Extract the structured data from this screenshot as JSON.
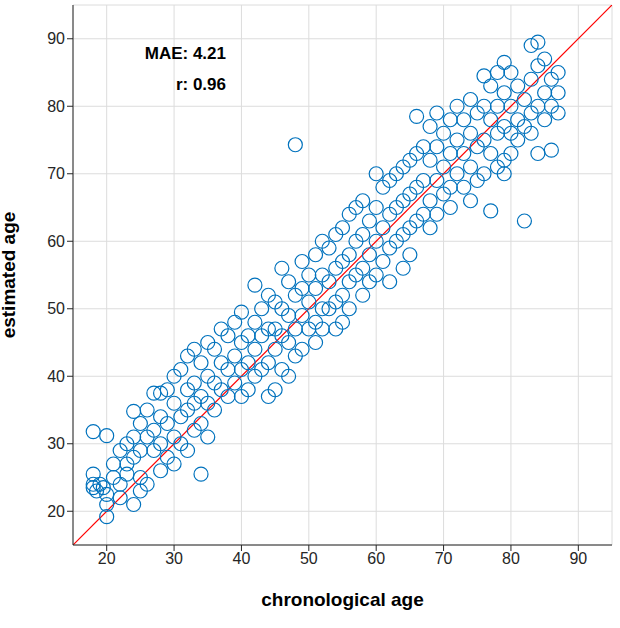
{
  "chart_data": {
    "type": "scatter",
    "x_label": "chronological age",
    "y_label": "estimated age",
    "annotations": [
      "MAE: 4.21",
      "r: 0.96"
    ],
    "xlim": [
      15,
      95
    ],
    "ylim": [
      15,
      95
    ],
    "xticks": [
      20,
      30,
      40,
      50,
      60,
      70,
      80,
      90
    ],
    "yticks": [
      20,
      30,
      40,
      50,
      60,
      70,
      80,
      90
    ],
    "grid": true,
    "color": "#0072bd",
    "marker": "circle",
    "diagonal": {
      "x": [
        15,
        95
      ],
      "y": [
        15,
        95
      ],
      "color": "#ff0000"
    },
    "x": [
      18,
      18,
      18,
      18.5,
      18,
      19,
      19.5,
      20,
      20,
      20,
      20,
      21,
      21,
      22,
      22,
      22,
      23,
      23,
      23,
      24,
      24,
      24,
      24,
      25,
      25,
      25,
      25,
      26,
      26,
      26,
      27,
      27,
      27,
      28,
      28,
      28,
      28,
      29,
      29,
      29,
      30,
      30,
      30,
      30,
      31,
      31,
      31,
      32,
      32,
      32,
      32,
      33,
      33,
      33,
      33,
      34,
      34,
      34,
      34,
      35,
      35,
      35,
      35,
      36,
      36,
      36,
      37,
      37,
      37,
      38,
      38,
      38,
      39,
      39,
      39,
      40,
      40,
      40,
      40,
      41,
      41,
      41,
      42,
      42,
      42,
      42,
      43,
      43,
      43,
      44,
      44,
      44,
      44,
      45,
      45,
      45,
      45,
      46,
      46,
      46,
      46,
      47,
      47,
      47,
      47,
      48,
      48,
      48,
      48,
      49,
      49,
      49,
      49,
      50,
      50,
      50,
      51,
      51,
      51,
      51,
      52,
      52,
      52,
      52,
      53,
      53,
      53,
      54,
      54,
      54,
      54,
      55,
      55,
      55,
      55,
      56,
      56,
      56,
      56,
      57,
      57,
      57,
      58,
      58,
      58,
      58,
      59,
      59,
      59,
      60,
      60,
      60,
      60,
      61,
      61,
      61,
      62,
      62,
      62,
      62,
      63,
      63,
      63,
      64,
      64,
      64,
      64,
      65,
      65,
      65,
      65,
      66,
      66,
      66,
      66,
      67,
      67,
      67,
      68,
      68,
      68,
      68,
      69,
      69,
      69,
      69,
      70,
      70,
      70,
      71,
      71,
      71,
      71,
      72,
      72,
      72,
      73,
      73,
      73,
      74,
      74,
      74,
      74,
      75,
      75,
      75,
      76,
      76,
      76,
      76,
      77,
      77,
      77,
      77,
      78,
      78,
      78,
      78,
      79,
      79,
      79,
      79,
      79,
      80,
      80,
      80,
      80,
      81,
      81,
      81,
      82,
      82,
      82,
      83,
      83,
      83,
      83,
      84,
      84,
      84,
      84,
      85,
      85,
      85,
      86,
      86,
      86,
      87,
      87,
      87
    ],
    "values": [
      23.5,
      25.5,
      24,
      23,
      31.8,
      24,
      23.5,
      31.2,
      19.2,
      21,
      22.5,
      27,
      25,
      29,
      24,
      22,
      27,
      30,
      25.5,
      31,
      34.8,
      28,
      21,
      33,
      29,
      25,
      23,
      31,
      35,
      24,
      37.5,
      32,
      29,
      37.5,
      34,
      30,
      26,
      38,
      33,
      28,
      40,
      36,
      31,
      27,
      41,
      34,
      30,
      43,
      38,
      35,
      29,
      44,
      39,
      36,
      32,
      42,
      37,
      25.5,
      33,
      45,
      40,
      36,
      31,
      44,
      39,
      35,
      47,
      42,
      38,
      46,
      41,
      37,
      48,
      43,
      39,
      49.5,
      45,
      41,
      37,
      46,
      42,
      38,
      53.5,
      48,
      44,
      40,
      50,
      46,
      41,
      52,
      47,
      42,
      37,
      51,
      47,
      44,
      38,
      56,
      50,
      46,
      41,
      54,
      49,
      45,
      40,
      74.3,
      52,
      47,
      43,
      57,
      53,
      49,
      44,
      55,
      51,
      47,
      58,
      53,
      48,
      45,
      60,
      55,
      50,
      47,
      59,
      54,
      50,
      61,
      56,
      51,
      47,
      62,
      57,
      52,
      48,
      64,
      58,
      54,
      50,
      65,
      60,
      55,
      66,
      61,
      56,
      52,
      63,
      58,
      54,
      70,
      65,
      60,
      55,
      68,
      62,
      57,
      69,
      64,
      59,
      54,
      70,
      65,
      60,
      71,
      66,
      61,
      56,
      72,
      67,
      62,
      58,
      78.5,
      73,
      68,
      63,
      74,
      69,
      64,
      77,
      72,
      66,
      62,
      79,
      74,
      69,
      64,
      76,
      71,
      67,
      78,
      73,
      68,
      65,
      80,
      75,
      70,
      78,
      73,
      68,
      81,
      76,
      71,
      66,
      79,
      74,
      69,
      84.5,
      80,
      75,
      70,
      83,
      78,
      64.5,
      73,
      85,
      80,
      76,
      71,
      86.5,
      82,
      77,
      72,
      70,
      85,
      80,
      76,
      73,
      83,
      78,
      75,
      63,
      81,
      77,
      89,
      84,
      79,
      76,
      89.5,
      86,
      80,
      73,
      87,
      82,
      78,
      80,
      73.5,
      84,
      85,
      82,
      79
    ]
  }
}
